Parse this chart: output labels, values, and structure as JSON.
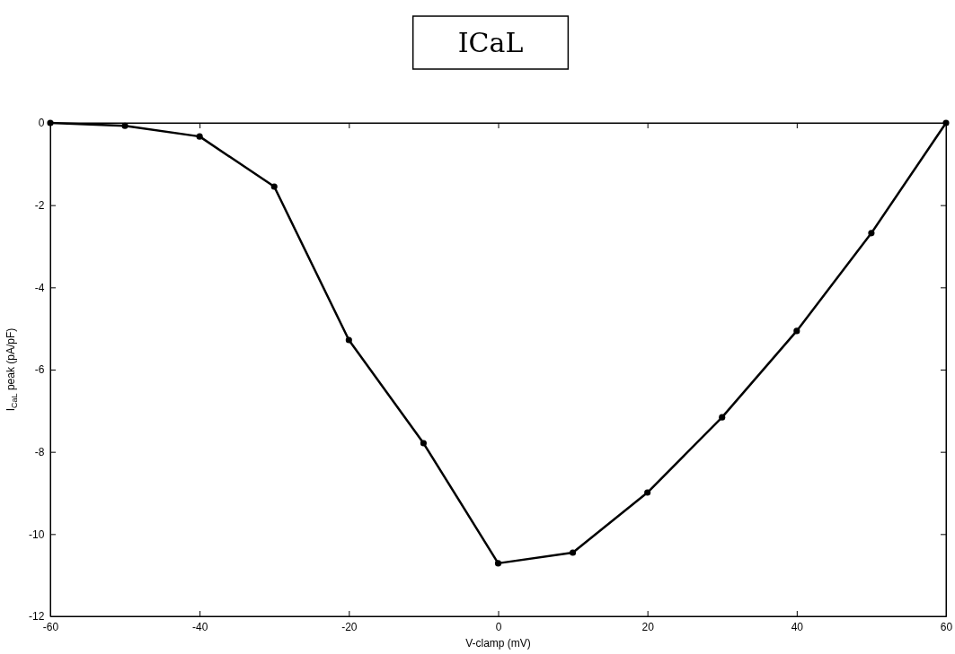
{
  "chart_data": {
    "type": "line",
    "title": "ICaL",
    "xlabel": "V-clamp (mV)",
    "ylabel": "I$_{CaL}$ peak (pA/pF)",
    "x": [
      -60,
      -50,
      -40,
      -30,
      -20,
      -10,
      0,
      10,
      20,
      30,
      40,
      50,
      60
    ],
    "series": [
      {
        "color": "#000000",
        "values": [
          0,
          -0.07,
          -0.33,
          -1.55,
          -5.28,
          -7.79,
          -10.71,
          -10.45,
          -8.99,
          -7.16,
          -5.06,
          -2.68,
          0
        ]
      }
    ],
    "xlim": [
      -60,
      60
    ],
    "xticks": [
      -60,
      -40,
      -20,
      0,
      20,
      40,
      60
    ],
    "ylim": [
      -12,
      0
    ],
    "yticks": [
      -12,
      -10,
      -8,
      -6,
      -4,
      -2,
      0
    ],
    "grid": false,
    "marker": "circle",
    "line_style": "solid"
  }
}
